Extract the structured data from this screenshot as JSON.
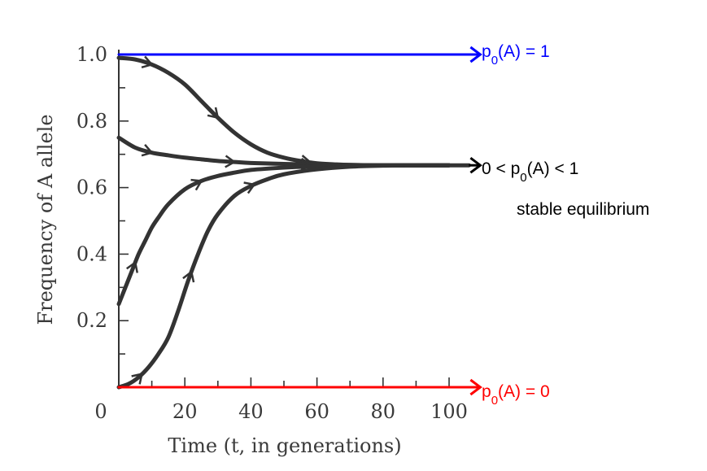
{
  "chart_data": {
    "type": "line",
    "title": "",
    "xlabel": "Time (t, in generations)",
    "ylabel": "Frequency of A allele",
    "xlim": [
      0,
      100
    ],
    "ylim": [
      0,
      1.0
    ],
    "x_ticks": [
      "0",
      "20",
      "40",
      "60",
      "80",
      "100"
    ],
    "y_ticks": [
      "0.2",
      "0.4",
      "0.6",
      "0.8",
      "1.0"
    ],
    "x_tick_values": [
      0,
      20,
      40,
      60,
      80,
      100
    ],
    "y_tick_values": [
      0.2,
      0.4,
      0.6,
      0.8,
      1.0
    ],
    "grid": false,
    "legend": "none",
    "series": [
      {
        "color": "#0000ff",
        "arrows_at": [
          100
        ],
        "points": [
          [
            0,
            1.0
          ],
          [
            106,
            1.0
          ]
        ]
      },
      {
        "color": "#333333",
        "arrows_at": [
          10,
          30,
          58
        ],
        "points": [
          [
            0,
            0.99
          ],
          [
            5,
            0.985
          ],
          [
            10,
            0.97
          ],
          [
            15,
            0.945
          ],
          [
            20,
            0.91
          ],
          [
            25,
            0.86
          ],
          [
            30,
            0.81
          ],
          [
            35,
            0.765
          ],
          [
            40,
            0.73
          ],
          [
            45,
            0.705
          ],
          [
            50,
            0.69
          ],
          [
            55,
            0.68
          ],
          [
            60,
            0.673
          ],
          [
            65,
            0.67
          ],
          [
            70,
            0.668
          ],
          [
            80,
            0.667
          ],
          [
            90,
            0.667
          ],
          [
            100,
            0.667
          ]
        ]
      },
      {
        "color": "#333333",
        "arrows_at": [
          10,
          35,
          58
        ],
        "points": [
          [
            0,
            0.75
          ],
          [
            5,
            0.72
          ],
          [
            10,
            0.705
          ],
          [
            15,
            0.697
          ],
          [
            20,
            0.69
          ],
          [
            25,
            0.685
          ],
          [
            30,
            0.68
          ],
          [
            35,
            0.677
          ],
          [
            40,
            0.674
          ],
          [
            50,
            0.671
          ],
          [
            60,
            0.669
          ],
          [
            70,
            0.668
          ],
          [
            80,
            0.667
          ],
          [
            90,
            0.667
          ],
          [
            100,
            0.667
          ]
        ]
      },
      {
        "color": "#333333",
        "arrows_at": [
          5,
          25
        ],
        "points": [
          [
            0,
            0.25
          ],
          [
            2,
            0.3
          ],
          [
            4,
            0.35
          ],
          [
            6,
            0.4
          ],
          [
            8,
            0.44
          ],
          [
            10,
            0.48
          ],
          [
            12,
            0.51
          ],
          [
            15,
            0.55
          ],
          [
            20,
            0.595
          ],
          [
            25,
            0.62
          ],
          [
            30,
            0.635
          ],
          [
            35,
            0.645
          ],
          [
            40,
            0.653
          ],
          [
            50,
            0.66
          ],
          [
            60,
            0.664
          ],
          [
            70,
            0.666
          ],
          [
            80,
            0.667
          ],
          [
            90,
            0.667
          ],
          [
            100,
            0.667
          ]
        ]
      },
      {
        "color": "#333333",
        "arrows_at": [
          7,
          22,
          41
        ],
        "points": [
          [
            0,
            0.0
          ],
          [
            3,
            0.01
          ],
          [
            6,
            0.03
          ],
          [
            9,
            0.06
          ],
          [
            12,
            0.1
          ],
          [
            15,
            0.15
          ],
          [
            18,
            0.23
          ],
          [
            21,
            0.32
          ],
          [
            24,
            0.4
          ],
          [
            27,
            0.47
          ],
          [
            30,
            0.52
          ],
          [
            35,
            0.575
          ],
          [
            40,
            0.605
          ],
          [
            45,
            0.625
          ],
          [
            50,
            0.64
          ],
          [
            60,
            0.655
          ],
          [
            70,
            0.663
          ],
          [
            80,
            0.666
          ],
          [
            90,
            0.667
          ],
          [
            100,
            0.667
          ]
        ]
      },
      {
        "color": "#333333",
        "arrows_at": [],
        "points": [
          [
            68,
            0.667
          ],
          [
            106,
            0.667
          ]
        ]
      },
      {
        "color": "#ff0000",
        "arrows_at": [
          100
        ],
        "points": [
          [
            0,
            0.0
          ],
          [
            106,
            0.0
          ]
        ]
      }
    ],
    "annotations": [
      {
        "id": "p1",
        "text": "p0(A) = 1",
        "color": "#0000ff"
      },
      {
        "id": "pmid",
        "text": "0 < p0(A) < 1",
        "color": "#000000"
      },
      {
        "id": "stable",
        "text": "stable equilibrium",
        "color": "#000000"
      },
      {
        "id": "p0",
        "text": "p0(A) = 0",
        "color": "#ff0000"
      }
    ]
  }
}
